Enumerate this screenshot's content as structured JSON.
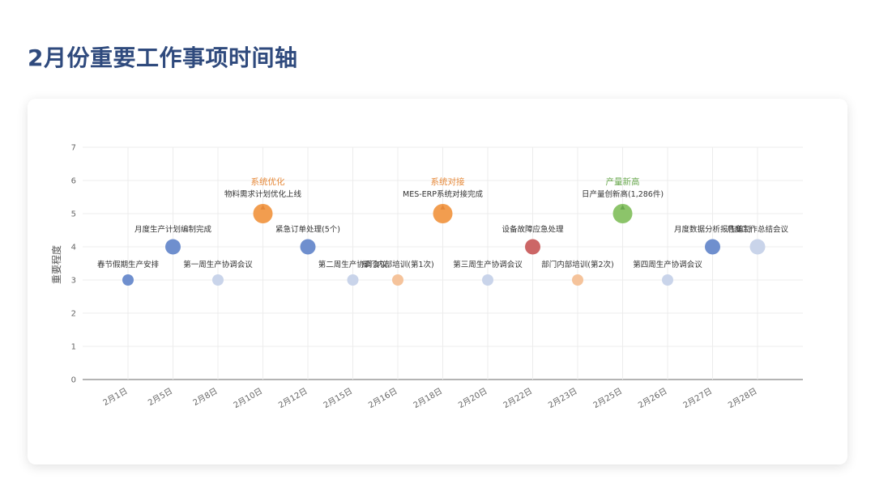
{
  "page": {
    "title": "2月份重要工作事项时间轴"
  },
  "chart_data": {
    "type": "scatter",
    "ylabel": "重要程度",
    "ylim": [
      0,
      7
    ],
    "yticks": [
      0,
      1,
      2,
      3,
      4,
      5,
      6,
      7
    ],
    "categories": [
      "2月1日",
      "2月5日",
      "2月8日",
      "2月10日",
      "2月12日",
      "2月15日",
      "2月16日",
      "2月18日",
      "2月20日",
      "2月22日",
      "2月23日",
      "2月25日",
      "2月26日",
      "2月27日",
      "2月28日"
    ],
    "grid": true,
    "points": [
      {
        "x": "2月1日",
        "y": 3,
        "label": "春节假期生产安排",
        "color": "#6f8fce"
      },
      {
        "x": "2月5日",
        "y": 4,
        "label": "月度生产计划编制完成",
        "color": "#6f8fce"
      },
      {
        "x": "2月8日",
        "y": 3,
        "label": "第一周生产协调会议",
        "color": "#c9d4ea"
      },
      {
        "x": "2月10日",
        "y": 5,
        "label": "物料需求计划优化上线",
        "color": "#f29d4f",
        "annotation": "系统优化",
        "annotation_color": "#e6893a"
      },
      {
        "x": "2月12日",
        "y": 4,
        "label": "紧急订单处理(5个)",
        "color": "#6f8fce"
      },
      {
        "x": "2月15日",
        "y": 3,
        "label": "第二周生产协调会议",
        "color": "#c9d4ea"
      },
      {
        "x": "2月16日",
        "y": 3,
        "label": "部门内部培训(第1次)",
        "color": "#f5c39b"
      },
      {
        "x": "2月18日",
        "y": 5,
        "label": "MES-ERP系统对接完成",
        "color": "#f29d4f",
        "annotation": "系统对接",
        "annotation_color": "#e6893a"
      },
      {
        "x": "2月20日",
        "y": 3,
        "label": "第三周生产协调会议",
        "color": "#c9d4ea"
      },
      {
        "x": "2月22日",
        "y": 4,
        "label": "设备故障应急处理",
        "color": "#cc6666"
      },
      {
        "x": "2月23日",
        "y": 3,
        "label": "部门内部培训(第2次)",
        "color": "#f5c39b"
      },
      {
        "x": "2月25日",
        "y": 5,
        "label": "日产量创新高(1,286件)",
        "color": "#8cc46a",
        "annotation": "产量新高",
        "annotation_color": "#6aa84f"
      },
      {
        "x": "2月26日",
        "y": 3,
        "label": "第四周生产协调会议",
        "color": "#c9d4ea"
      },
      {
        "x": "2月27日",
        "y": 4,
        "label": "月度数据分析报告编制",
        "color": "#6f8fce"
      },
      {
        "x": "2月28日",
        "y": 4,
        "label": "月度工作总结会议",
        "color": "#c9d4ea"
      }
    ]
  }
}
